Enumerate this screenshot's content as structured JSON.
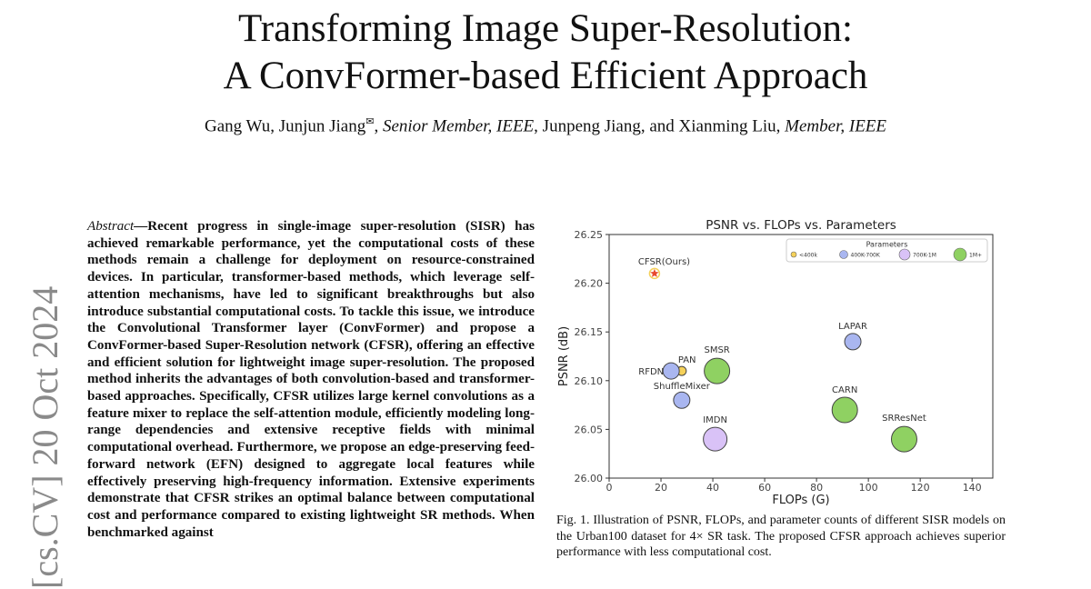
{
  "paper": {
    "title_line1": "Transforming Image Super-Resolution:",
    "title_line2": "A ConvFormer-based Efficient Approach",
    "authors_part1": "Gang Wu, Junjun Jiang",
    "authors_mark": "✉",
    "authors_part2": ", ",
    "authors_role1": "Senior Member, IEEE",
    "authors_part3": ", Junpeng Jiang, and Xianming Liu, ",
    "authors_role2": "Member, IEEE",
    "arxiv_stamp": "[cs.CV]  20 Oct 2024",
    "abstract_heading": "Abstract",
    "abstract_text": "—Recent progress in single-image super-resolution (SISR) has achieved remarkable performance, yet the computational costs of these methods remain a challenge for deployment on resource-constrained devices. In particular, transformer-based methods, which leverage self-attention mechanisms, have led to significant breakthroughs but also introduce substantial computational costs. To tackle this issue, we introduce the Convolutional Transformer layer (ConvFormer) and propose a ConvFormer-based Super-Resolution network (CFSR), offering an effective and efficient solution for lightweight image super-resolution. The proposed method inherits the advantages of both convolution-based and transformer-based approaches. Specifically, CFSR utilizes large kernel convolutions as a feature mixer to replace the self-attention module, efficiently modeling long-range dependencies and extensive receptive fields with minimal computational overhead. Furthermore, we propose an edge-preserving feed-forward network (EFN) designed to aggregate local features while effectively preserving high-frequency information. Extensive experiments demonstrate that CFSR strikes an optimal balance between computational cost and performance compared to existing lightweight SR methods. When benchmarked against",
    "caption": "Fig. 1.   Illustration of PSNR, FLOPs, and parameter counts of different SISR models on the Urban100 dataset for 4× SR task. The proposed CFSR approach achieves superior performance with less computational cost."
  },
  "chart_data": {
    "type": "scatter",
    "title": "PSNR vs. FLOPs vs. Parameters",
    "xlabel": "FLOPs (G)",
    "ylabel": "PSNR (dB)",
    "xlim": [
      0,
      148
    ],
    "ylim": [
      26.0,
      26.25
    ],
    "xticks": [
      "0",
      "20",
      "40",
      "60",
      "80",
      "100",
      "120",
      "140"
    ],
    "yticks": [
      "26.00",
      "26.05",
      "26.10",
      "26.15",
      "26.20",
      "26.25"
    ],
    "grid": false,
    "legend": {
      "title": "Parameters",
      "placement": "top-right",
      "entries": [
        {
          "label": "<400k",
          "color": "#f5d15a"
        },
        {
          "label": "400K-700K",
          "color": "#a9b6f0"
        },
        {
          "label": "700K-1M",
          "color": "#d9c2f7"
        },
        {
          "label": "1M+",
          "color": "#8fd162"
        }
      ]
    },
    "points": [
      {
        "label": "CFSR(Ours)",
        "x": 17.5,
        "y": 26.21,
        "group": "<400k",
        "marker": "star"
      },
      {
        "label": "PAN",
        "x": 28,
        "y": 26.11,
        "group": "<400k"
      },
      {
        "label": "RFDN",
        "x": 23.9,
        "y": 26.11,
        "group": "400K-700K"
      },
      {
        "label": "ShuffleMixer",
        "x": 28,
        "y": 26.08,
        "group": "400K-700K"
      },
      {
        "label": "SMSR",
        "x": 41.6,
        "y": 26.11,
        "group": "1M+"
      },
      {
        "label": "LAPAR",
        "x": 94,
        "y": 26.14,
        "group": "400K-700K"
      },
      {
        "label": "IMDN",
        "x": 40.9,
        "y": 26.04,
        "group": "700K-1M"
      },
      {
        "label": "CARN",
        "x": 90.9,
        "y": 26.07,
        "group": "1M+"
      },
      {
        "label": "SRResNet",
        "x": 113.8,
        "y": 26.04,
        "group": "1M+"
      }
    ],
    "colors": {
      "star_fill": "#e84a2f",
      "star_outline": "#f5d15a"
    }
  }
}
